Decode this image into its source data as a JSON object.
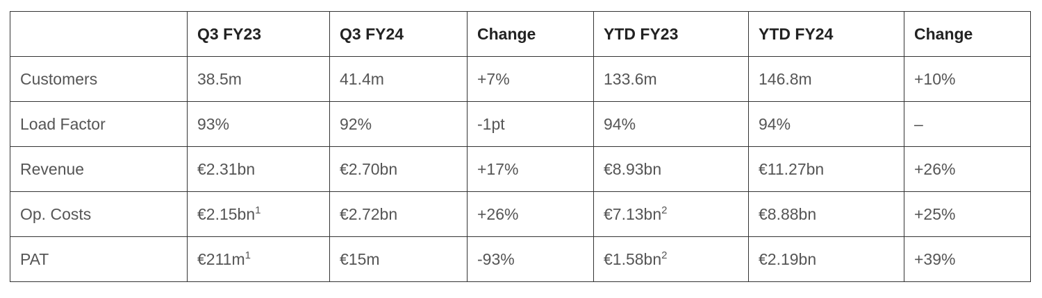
{
  "table": {
    "columns": [
      "Q3 FY23",
      "Q3 FY24",
      "Change",
      "YTD FY23",
      "YTD FY24",
      "Change"
    ],
    "rows": [
      {
        "label": "Customers",
        "cells": [
          "38.5m",
          "41.4m",
          "+7%",
          "133.6m",
          "146.8m",
          "+10%"
        ]
      },
      {
        "label": "Load Factor",
        "cells": [
          "93%",
          "92%",
          "-1pt",
          "94%",
          "94%",
          "–"
        ]
      },
      {
        "label": "Revenue",
        "cells": [
          "€2.31bn",
          "€2.70bn",
          "+17%",
          "€8.93bn",
          "€11.27bn",
          "+26%"
        ]
      },
      {
        "label": "Op. Costs",
        "cells": [
          {
            "text": "€2.15bn",
            "note": "1"
          },
          "€2.72bn",
          "+26%",
          {
            "text": "€7.13bn",
            "note": "2"
          },
          "€8.88bn",
          "+25%"
        ]
      },
      {
        "label": "PAT",
        "cells": [
          {
            "text": "€211m",
            "note": "1"
          },
          "€15m",
          "-93%",
          {
            "text": "€1.58bn",
            "note": "2"
          },
          "€2.19bn",
          "+39%"
        ]
      }
    ]
  }
}
